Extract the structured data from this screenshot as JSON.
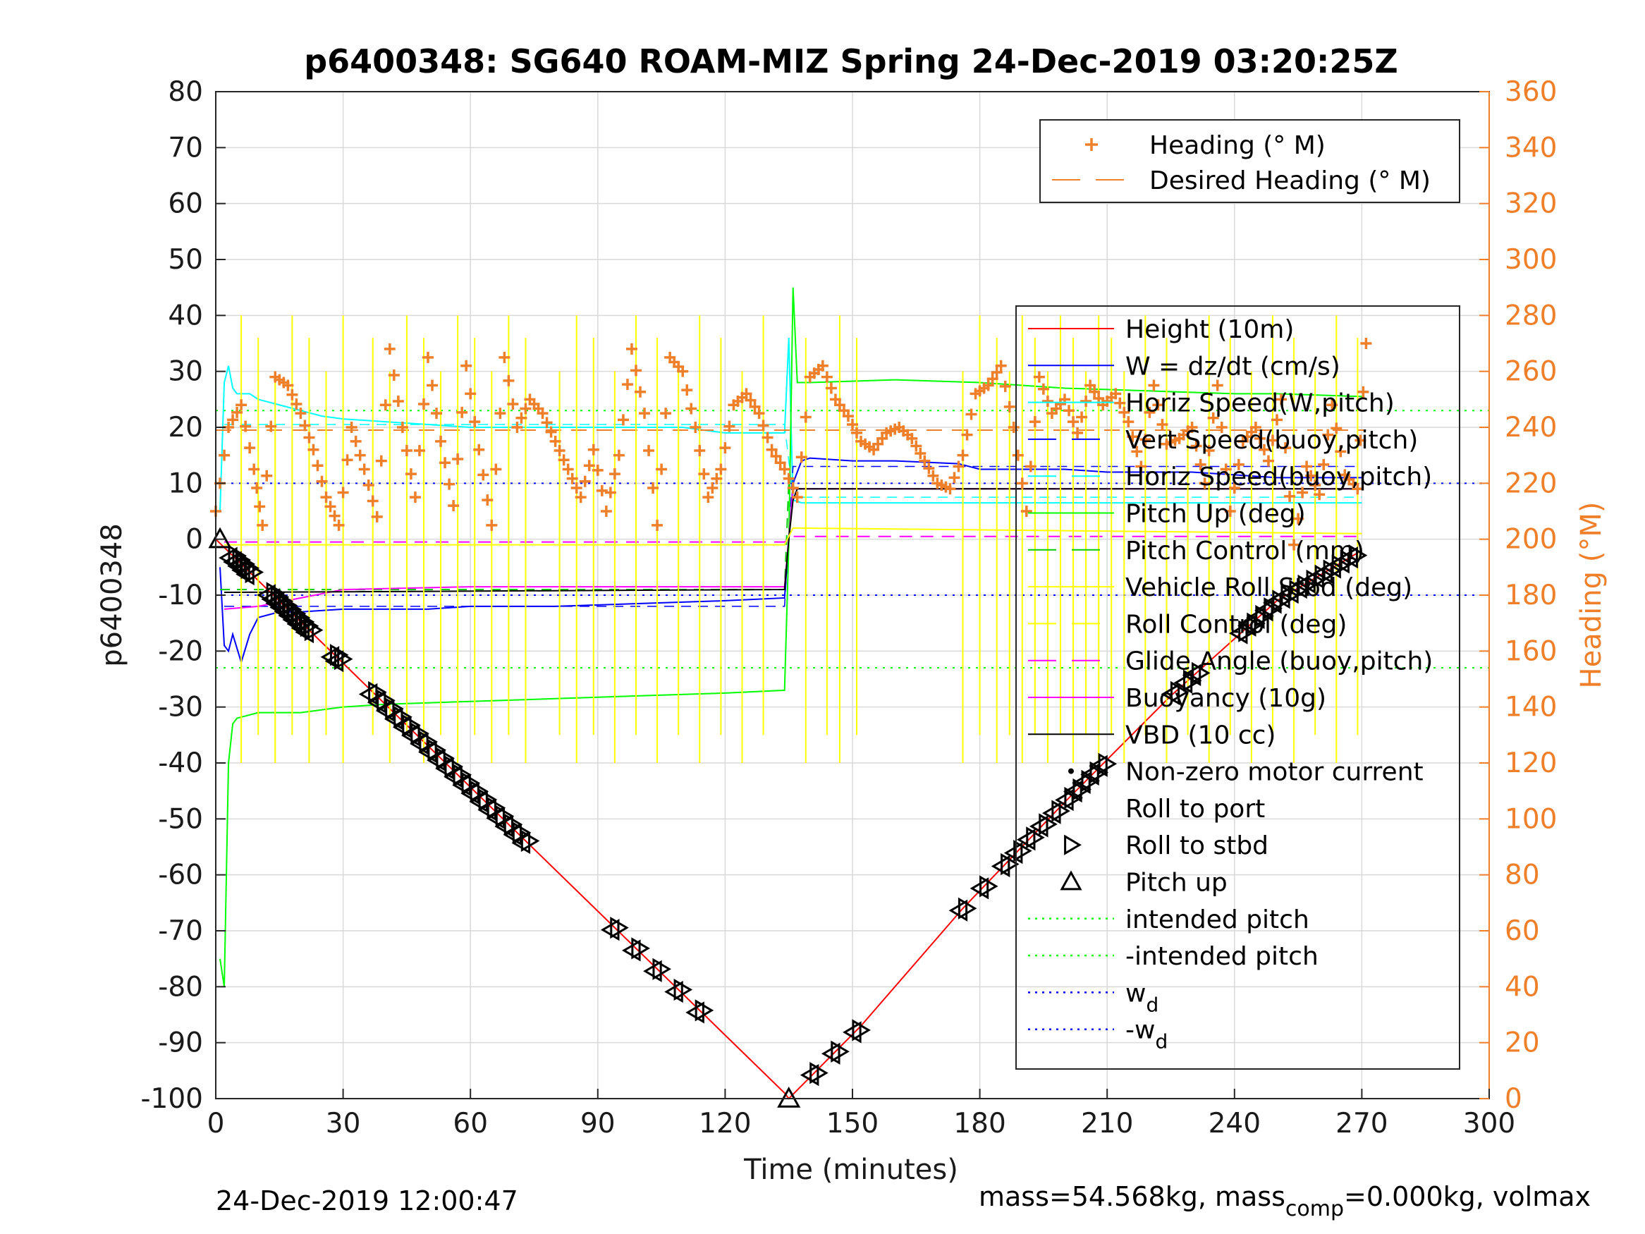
{
  "colors": {
    "height": "#ff0000",
    "w": "#0000ff",
    "horiz_w": "#00ffff",
    "vert_buoy": "#0000ff",
    "horiz_buoy": "#00ffff",
    "pitch_up_line": "#00ff00",
    "pitch_control": "#00cc00",
    "roll": "#ffff00",
    "glide": "#ff00ff",
    "buoyancy": "#ff00ff",
    "vbd": "#000000",
    "heading": "#f07f2a",
    "intended_pitch": "#00ff00",
    "wd": "#0000ff",
    "grid": "#d9d9d9"
  },
  "chart_data": {
    "type": "line",
    "title": "p6400348: SG640 ROAM-MIZ Spring 24-Dec-2019 03:20:25Z",
    "xlabel": "Time (minutes)",
    "ylabel": "p6400348",
    "ylabel_right": "Heading (°M)",
    "xlim": [
      0,
      300
    ],
    "ylim": [
      -100,
      80
    ],
    "ylim_right": [
      0,
      360
    ],
    "xticks": [
      "0",
      "30",
      "60",
      "90",
      "120",
      "150",
      "180",
      "210",
      "240",
      "270",
      "300"
    ],
    "yticks": [
      "80",
      "70",
      "60",
      "50",
      "40",
      "30",
      "20",
      "10",
      "0",
      "-10",
      "-20",
      "-30",
      "-40",
      "-50",
      "-60",
      "-70",
      "-80",
      "-90",
      "-100"
    ],
    "yticks_right": [
      "360",
      "340",
      "320",
      "300",
      "280",
      "260",
      "240",
      "220",
      "200",
      "180",
      "160",
      "140",
      "120",
      "100",
      "80",
      "60",
      "40",
      "20",
      "0"
    ],
    "grid": true,
    "legend_right_axis": {
      "placement": "top-right",
      "entries": [
        {
          "label": "Heading (° M)",
          "style": "plus-marker"
        },
        {
          "label": "Desired Heading (° M)",
          "style": "dashed"
        }
      ]
    },
    "legend_left_axis": {
      "placement": "right",
      "entries": [
        {
          "label": "Height (10m)",
          "style": "solid"
        },
        {
          "label": "W = dz/dt (cm/s)",
          "style": "solid"
        },
        {
          "label": "Horiz Speed(W,pitch)",
          "style": "solid"
        },
        {
          "label": "Vert Speed(buoy,pitch)",
          "style": "dashed"
        },
        {
          "label": "Horiz Speed(buoy,pitch)",
          "style": "dashed"
        },
        {
          "label": "Pitch Up (deg)",
          "style": "solid"
        },
        {
          "label": "Pitch Control (mm)",
          "style": "dashed"
        },
        {
          "label": "Vehicle Roll Stbd (deg)",
          "style": "solid"
        },
        {
          "label": "Roll Control (deg)",
          "style": "dashed"
        },
        {
          "label": "Glide Angle (buoy,pitch)",
          "style": "dashed"
        },
        {
          "label": "Buoyancy (10g)",
          "style": "solid"
        },
        {
          "label": "VBD (10 cc)",
          "style": "solid"
        },
        {
          "label": "Non-zero motor current",
          "style": "dot-marker"
        },
        {
          "label": "Roll to port",
          "style": "left-triangle"
        },
        {
          "label": "Roll to stbd",
          "style": "right-triangle"
        },
        {
          "label": "Pitch up",
          "style": "up-triangle"
        },
        {
          "label": "intended pitch",
          "style": "dotted"
        },
        {
          "label": "-intended pitch",
          "style": "dotted"
        },
        {
          "label": "w",
          "sub": "d",
          "style": "dotted"
        },
        {
          "label": "-w",
          "sub": "d",
          "style": "dotted"
        }
      ]
    },
    "series": [
      {
        "name": "Height (10m)",
        "axis": "left",
        "x": [
          0,
          134,
          135,
          152,
          176,
          200,
          225,
          250,
          270
        ],
        "y": [
          0,
          -99,
          -100,
          -87,
          -66,
          -47,
          -28,
          -11,
          -2
        ]
      },
      {
        "name": "W = dz/dt (cm/s)",
        "axis": "left",
        "x": [
          1,
          2,
          3,
          4,
          6,
          8,
          10,
          15,
          20,
          30,
          40,
          50,
          60,
          80,
          100,
          120,
          134,
          136,
          138,
          140,
          150,
          160,
          175,
          180,
          200,
          210,
          230,
          250,
          270
        ],
        "y": [
          -5,
          -19,
          -20,
          -17,
          -22,
          -17,
          -14,
          -13,
          -13,
          -12.5,
          -12.5,
          -12.5,
          -12,
          -12,
          -11.5,
          -11,
          -10.5,
          10,
          14,
          14.5,
          14,
          14,
          13.5,
          12.5,
          12.5,
          12,
          12,
          11,
          11
        ]
      },
      {
        "name": "Horiz Speed(W,pitch)",
        "axis": "left",
        "x": [
          1,
          2,
          3,
          4,
          5,
          6,
          8,
          10,
          15,
          20,
          25,
          30,
          40,
          50,
          60,
          80,
          100,
          110,
          120,
          130,
          134,
          135,
          136,
          138,
          150,
          200,
          250,
          270
        ],
        "y": [
          5,
          28,
          31,
          27,
          26,
          26,
          26,
          25,
          24,
          23,
          22,
          21.5,
          21,
          20.5,
          20,
          20,
          20,
          20,
          19,
          19,
          19,
          36,
          7,
          6.5,
          6.5,
          6.5,
          6.5,
          6.5
        ]
      },
      {
        "name": "Vert Speed(buoy,pitch)",
        "axis": "left",
        "x": [
          2,
          134,
          136,
          270
        ],
        "y": [
          -12,
          -12,
          13,
          13
        ]
      },
      {
        "name": "Horiz Speed(buoy,pitch)",
        "axis": "left",
        "x": [
          2,
          134,
          136,
          270
        ],
        "y": [
          20.5,
          20.5,
          7.5,
          7.5
        ]
      },
      {
        "name": "Pitch Up (deg)",
        "axis": "left",
        "x": [
          1,
          2,
          3,
          4,
          5,
          10,
          20,
          30,
          40,
          60,
          80,
          100,
          120,
          134,
          135,
          136,
          137,
          140,
          160,
          180,
          200,
          220,
          240,
          250,
          270,
          271
        ],
        "y": [
          -75,
          -80,
          -40,
          -33,
          -32,
          -31,
          -31,
          -30,
          -29.5,
          -29,
          -28.5,
          -28,
          -27.5,
          -27,
          -1,
          45,
          28,
          28,
          28.5,
          28,
          27,
          26.5,
          26,
          26,
          25.5,
          25
        ]
      },
      {
        "name": "Pitch Control (mm)",
        "axis": "left",
        "x": [
          1,
          134,
          135,
          136,
          270
        ],
        "y": [
          -9,
          -9,
          10,
          9,
          9
        ]
      },
      {
        "name": "Glide Angle (buoy,pitch)",
        "axis": "left",
        "x": [
          2,
          134,
          136,
          270
        ],
        "y": [
          -0.5,
          -0.5,
          0.5,
          0.5
        ]
      },
      {
        "name": "Buoyancy (10g)",
        "axis": "left",
        "x": [
          2,
          10,
          20,
          30,
          60,
          90,
          134,
          136,
          270
        ],
        "y": [
          -12.5,
          -12,
          -10.5,
          -9,
          -8.5,
          -8.5,
          -8.5,
          9,
          9
        ]
      },
      {
        "name": "VBD (10 cc)",
        "axis": "left",
        "x": [
          2,
          134,
          135,
          136,
          137,
          270
        ],
        "y": [
          -9.5,
          -9,
          0,
          7,
          9,
          9
        ]
      },
      {
        "name": "Heading (° M)",
        "axis": "right",
        "x": [
          0,
          3,
          6,
          9,
          11,
          14,
          17,
          20,
          23,
          26,
          29,
          32,
          35,
          38,
          41,
          44,
          47,
          50,
          53,
          56,
          59,
          62,
          65,
          68,
          71,
          74,
          77,
          80,
          83,
          86,
          89,
          92,
          95,
          98,
          101,
          104,
          107,
          110,
          113,
          116,
          119,
          122,
          125,
          128,
          131,
          134,
          137,
          140,
          143,
          146,
          149,
          152,
          155,
          158,
          161,
          164,
          167,
          170,
          173,
          176,
          179,
          182,
          185,
          188,
          191,
          194,
          197,
          200,
          203,
          206,
          209,
          212,
          215,
          218,
          221,
          224,
          227,
          230,
          233,
          236,
          239,
          242,
          245,
          248,
          251,
          254,
          257,
          260,
          263,
          266,
          269,
          271
        ],
        "y": [
          210,
          240,
          248,
          225,
          205,
          258,
          255,
          245,
          232,
          215,
          205,
          240,
          225,
          208,
          268,
          240,
          215,
          265,
          235,
          212,
          262,
          232,
          205,
          265,
          240,
          250,
          245,
          235,
          225,
          215,
          232,
          210,
          230,
          268,
          245,
          205,
          265,
          260,
          240,
          215,
          225,
          248,
          252,
          245,
          232,
          225,
          215,
          258,
          262,
          250,
          244,
          235,
          232,
          238,
          240,
          236,
          228,
          220,
          218,
          230,
          252,
          255,
          262,
          240,
          210,
          258,
          245,
          250,
          238,
          255,
          248,
          252,
          242,
          226,
          255,
          234,
          236,
          240,
          220,
          255,
          210,
          235,
          240,
          228,
          250,
          198,
          226,
          216,
          248,
          223,
          218,
          270
        ]
      },
      {
        "name": "Desired Heading (° M)",
        "axis": "right",
        "x": [
          0,
          271
        ],
        "y": [
          239,
          239
        ]
      }
    ],
    "reference_lines": [
      {
        "name": "intended pitch",
        "y": 23
      },
      {
        "name": "-intended pitch",
        "y": -23
      },
      {
        "name": "w_d",
        "y": 10
      },
      {
        "name": "-w_d",
        "y": -10
      }
    ],
    "markers": {
      "pitch_up": [
        [
          1,
          0
        ],
        [
          135,
          -100
        ]
      ],
      "dive_x": [
        4,
        5,
        6,
        7,
        8,
        13,
        14,
        15,
        16,
        17,
        18,
        19,
        20,
        21,
        22,
        28,
        29,
        37,
        39,
        41,
        43,
        45,
        47,
        49,
        51,
        53,
        55,
        57,
        59,
        61,
        63,
        65,
        67,
        69,
        71,
        73,
        94,
        99,
        104,
        109,
        114
      ],
      "climb_x": [
        141,
        146,
        151,
        176,
        181,
        186,
        189,
        192,
        195,
        198,
        201,
        203,
        205,
        207,
        209,
        226,
        229,
        231,
        242,
        244,
        246,
        248,
        250,
        252,
        254,
        256,
        258,
        260,
        262,
        264,
        266,
        268
      ]
    }
  },
  "footer": {
    "date": "24-Dec-2019 12:00:47",
    "mass_prefix": "mass=54.568kg, mass",
    "mass_sub": "comp",
    "mass_suffix": "=0.000kg, volmax"
  }
}
